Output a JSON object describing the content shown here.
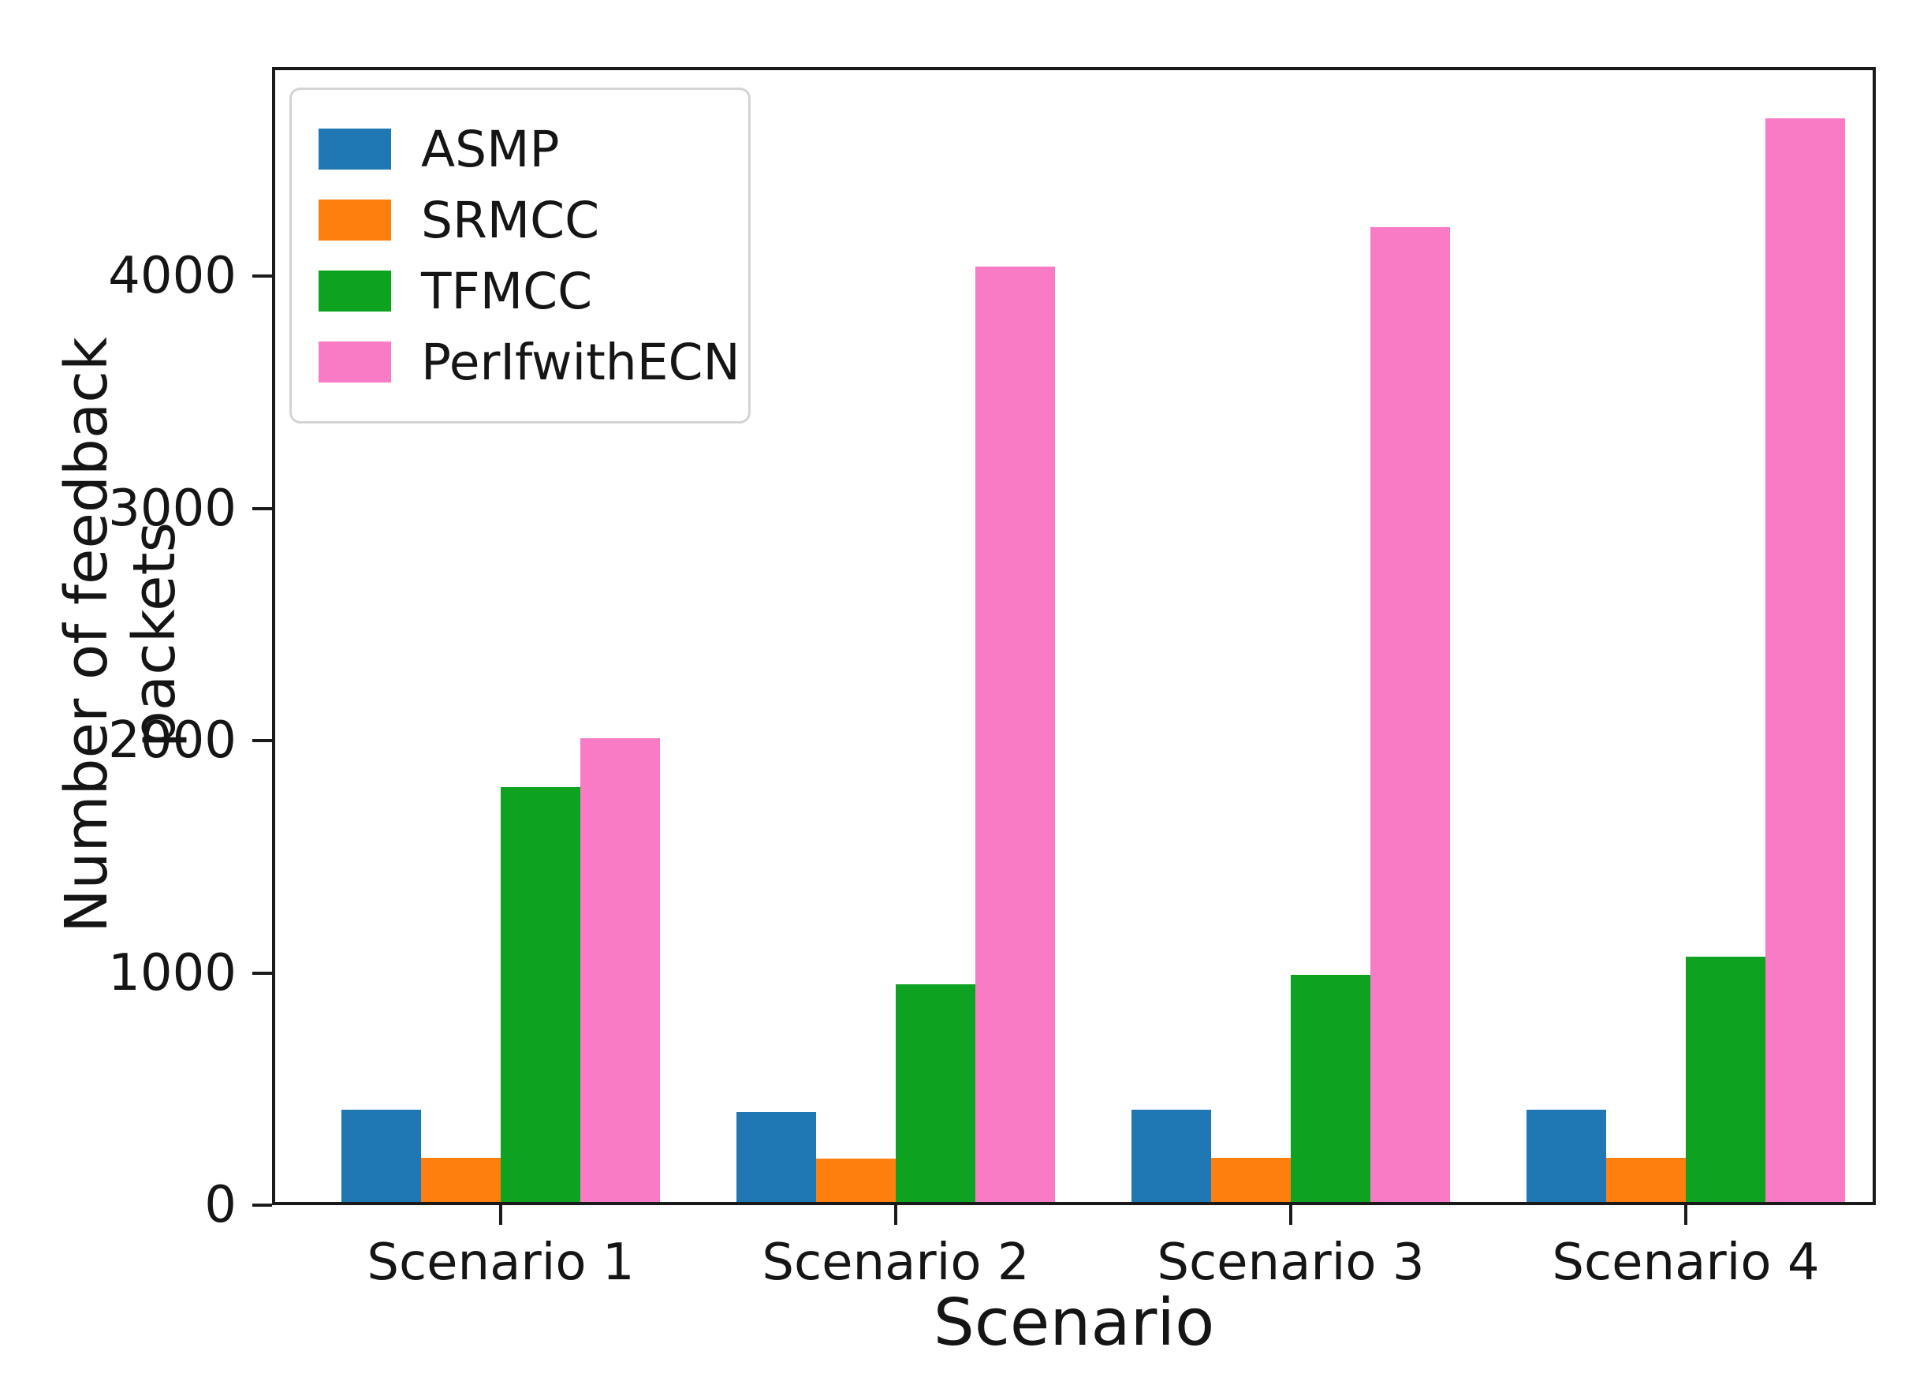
{
  "chart_data": {
    "type": "bar",
    "title": "",
    "xlabel": "Scenario",
    "ylabel": "Number of feedback packets",
    "categories": [
      "Scenario 1",
      "Scenario 2",
      "Scenario 3",
      "Scenario 4"
    ],
    "series": [
      {
        "name": "ASMP",
        "color": "#1f77b4",
        "values": [
          410,
          400,
          410,
          410
        ]
      },
      {
        "name": "SRMCC",
        "color": "#ff7f0e",
        "values": [
          205,
          200,
          205,
          205
        ]
      },
      {
        "name": "TFMCC",
        "color": "#0da321",
        "values": [
          1800,
          950,
          990,
          1070
        ]
      },
      {
        "name": "PerIfwithECN",
        "color": "#fa7bc5",
        "values": [
          2010,
          4040,
          4210,
          4680
        ]
      }
    ],
    "y_ticks": [
      0,
      1000,
      2000,
      3000,
      4000
    ],
    "ylim": [
      0,
      4900
    ],
    "grid": false,
    "legend_position": "upper-left",
    "axis_color": "#1a1a1a",
    "text_color": "#151515"
  }
}
